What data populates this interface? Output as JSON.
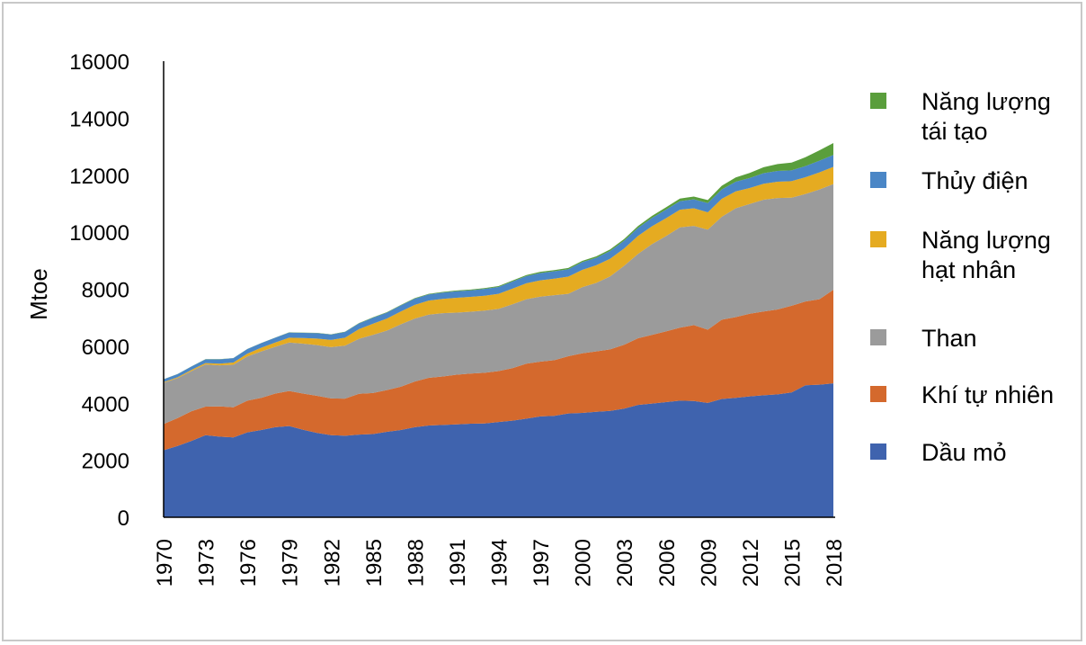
{
  "chart_data": {
    "type": "area",
    "stacked": true,
    "title": "",
    "xlabel": "",
    "ylabel": "Mtoe",
    "ylim": [
      0,
      16000
    ],
    "xlim": [
      1970,
      2018
    ],
    "grid": false,
    "legend_position": "right",
    "y_ticks": [
      "0",
      "2000",
      "4000",
      "6000",
      "8000",
      "10000",
      "12000",
      "14000",
      "16000"
    ],
    "x_ticks": [
      "1970",
      "1973",
      "1976",
      "1979",
      "1982",
      "1985",
      "1988",
      "1991",
      "1994",
      "1997",
      "2000",
      "2003",
      "2006",
      "2009",
      "2012",
      "2015",
      "2018"
    ],
    "x": [
      1970,
      1971,
      1972,
      1973,
      1974,
      1975,
      1976,
      1977,
      1978,
      1979,
      1980,
      1981,
      1982,
      1983,
      1984,
      1985,
      1986,
      1987,
      1988,
      1989,
      1990,
      1991,
      1992,
      1993,
      1994,
      1995,
      1996,
      1997,
      1998,
      1999,
      2000,
      2001,
      2002,
      2003,
      2004,
      2005,
      2006,
      2007,
      2008,
      2009,
      2010,
      2011,
      2012,
      2013,
      2014,
      2015,
      2016,
      2017,
      2018
    ],
    "series": [
      {
        "name": "Dầu mỏ",
        "color": "#3f63ae",
        "values": [
          2350,
          2500,
          2680,
          2880,
          2830,
          2800,
          2980,
          3060,
          3160,
          3200,
          3070,
          2960,
          2880,
          2860,
          2900,
          2920,
          3000,
          3060,
          3160,
          3220,
          3240,
          3260,
          3280,
          3290,
          3340,
          3390,
          3460,
          3540,
          3560,
          3640,
          3660,
          3700,
          3730,
          3810,
          3940,
          3990,
          4040,
          4090,
          4080,
          4010,
          4150,
          4190,
          4240,
          4280,
          4310,
          4380,
          4630,
          4650,
          4700
        ]
      },
      {
        "name": "Khí tự nhiên",
        "color": "#d4692d",
        "values": [
          920,
          980,
          1040,
          1000,
          1060,
          1060,
          1110,
          1130,
          1180,
          1230,
          1270,
          1300,
          1290,
          1300,
          1430,
          1440,
          1460,
          1520,
          1600,
          1670,
          1700,
          1740,
          1760,
          1780,
          1790,
          1840,
          1930,
          1920,
          1950,
          2010,
          2090,
          2120,
          2160,
          2240,
          2340,
          2410,
          2480,
          2560,
          2660,
          2570,
          2780,
          2830,
          2900,
          2940,
          2980,
          3040,
          2940,
          3000,
          3280
        ]
      },
      {
        "name": "Than",
        "color": "#9b9b9b",
        "values": [
          1450,
          1400,
          1410,
          1480,
          1440,
          1490,
          1550,
          1630,
          1640,
          1700,
          1750,
          1780,
          1800,
          1860,
          1930,
          2040,
          2090,
          2190,
          2210,
          2220,
          2220,
          2180,
          2170,
          2180,
          2180,
          2240,
          2260,
          2280,
          2280,
          2190,
          2320,
          2400,
          2560,
          2770,
          2960,
          3180,
          3340,
          3520,
          3480,
          3510,
          3610,
          3820,
          3850,
          3920,
          3910,
          3790,
          3770,
          3850,
          3710
        ]
      },
      {
        "name": "Năng lượng hạt nhân",
        "color": "#e5ab21",
        "values": [
          20,
          30,
          40,
          50,
          60,
          80,
          100,
          130,
          150,
          170,
          200,
          230,
          250,
          280,
          340,
          390,
          420,
          450,
          480,
          490,
          500,
          520,
          520,
          520,
          530,
          550,
          560,
          570,
          580,
          600,
          610,
          620,
          620,
          610,
          630,
          630,
          630,
          620,
          620,
          610,
          630,
          590,
          560,
          560,
          570,
          580,
          590,
          600,
          600
        ]
      },
      {
        "name": "Thủy điện",
        "color": "#4a86c6",
        "values": [
          100,
          110,
          120,
          130,
          150,
          150,
          160,
          160,
          170,
          180,
          180,
          190,
          190,
          200,
          200,
          210,
          210,
          210,
          220,
          220,
          220,
          230,
          230,
          240,
          240,
          250,
          250,
          260,
          260,
          260,
          270,
          260,
          270,
          270,
          280,
          290,
          300,
          300,
          310,
          320,
          330,
          340,
          350,
          370,
          380,
          380,
          390,
          410,
          420
        ]
      },
      {
        "name": "Năng lượng tái tạo",
        "color": "#5a9e3c",
        "values": [
          5,
          5,
          5,
          5,
          5,
          5,
          5,
          5,
          5,
          8,
          8,
          10,
          10,
          10,
          12,
          15,
          15,
          18,
          20,
          20,
          25,
          25,
          30,
          30,
          30,
          35,
          35,
          40,
          40,
          45,
          45,
          50,
          55,
          60,
          65,
          70,
          80,
          90,
          100,
          110,
          130,
          150,
          180,
          210,
          240,
          270,
          310,
          360,
          420
        ]
      }
    ]
  }
}
